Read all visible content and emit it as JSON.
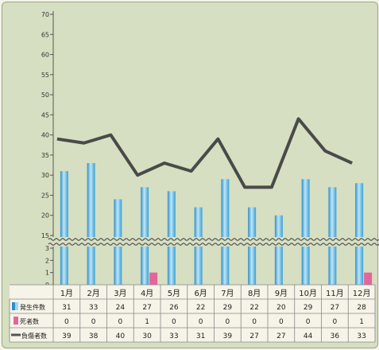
{
  "chart_data": {
    "type": "bar",
    "categories": [
      "1月",
      "2月",
      "3月",
      "4月",
      "5月",
      "6月",
      "7月",
      "8月",
      "9月",
      "10月",
      "11月",
      "12月"
    ],
    "series": [
      {
        "name": "発生件数",
        "kind": "bar",
        "color": "#55b8e6",
        "values": [
          31,
          33,
          24,
          27,
          26,
          22,
          29,
          22,
          20,
          29,
          27,
          28
        ]
      },
      {
        "name": "死者数",
        "kind": "bar",
        "color": "#e2669b",
        "values": [
          0,
          0,
          0,
          1,
          0,
          0,
          0,
          0,
          0,
          0,
          0,
          1
        ]
      },
      {
        "name": "負傷者数",
        "kind": "line",
        "color": "#4a4a4a",
        "values": [
          39,
          38,
          40,
          30,
          33,
          31,
          39,
          27,
          27,
          44,
          36,
          33
        ]
      }
    ],
    "y_axis_upper": {
      "range": [
        15,
        70
      ],
      "ticks": [
        15,
        20,
        25,
        30,
        35,
        40,
        45,
        50,
        55,
        60,
        65,
        70
      ]
    },
    "y_axis_lower": {
      "range": [
        0,
        3
      ],
      "ticks": [
        0,
        1,
        2,
        3
      ]
    },
    "axis_break": true,
    "grid": false,
    "legend": "table-left"
  },
  "table_rows": {
    "count_label": "発生件数",
    "death_label": "死者数",
    "injury_label": "負傷者数"
  }
}
